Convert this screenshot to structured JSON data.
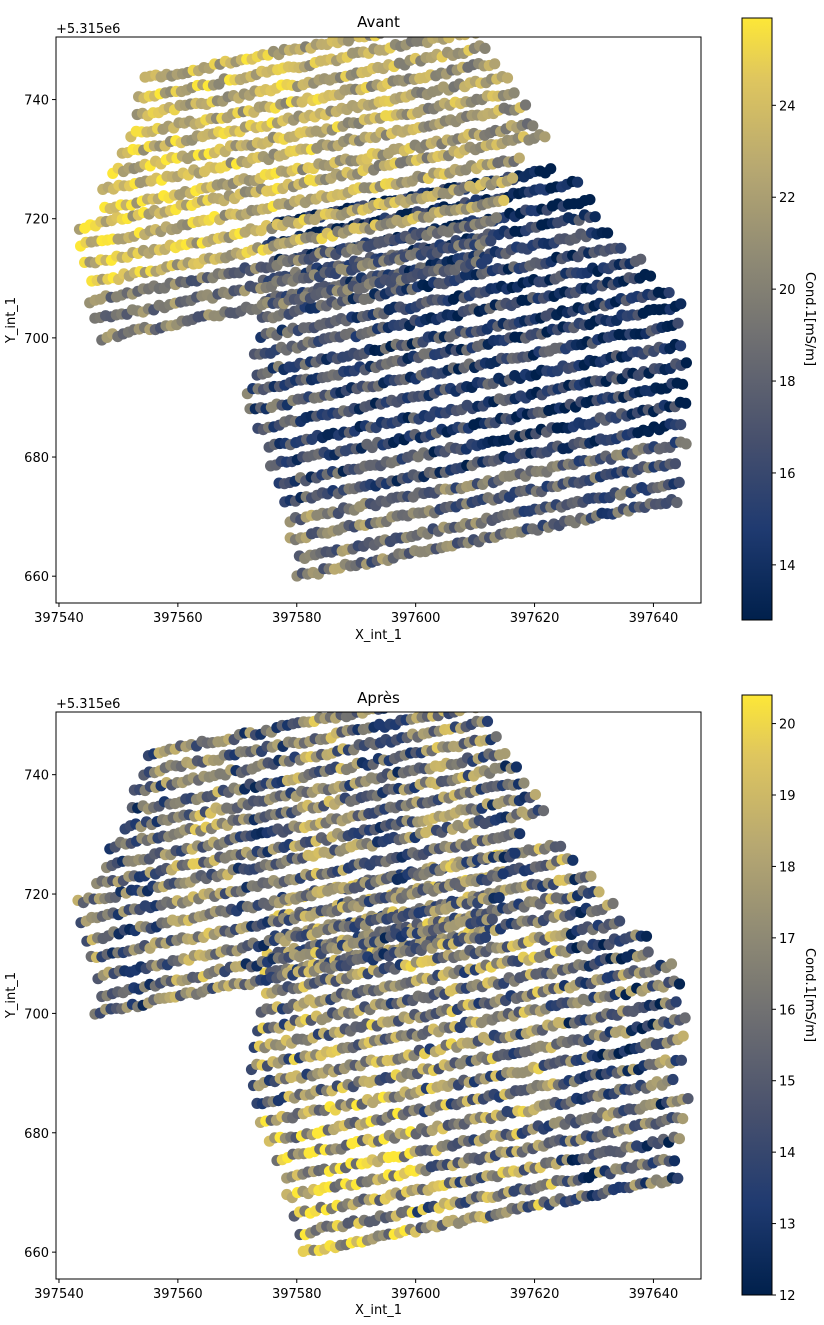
{
  "chart_data": [
    {
      "type": "scatter",
      "title": "Avant",
      "xlabel": "X_int_1",
      "ylabel": "Y_int_1",
      "y_offset_label": "+5.315e6",
      "xlim": [
        397539.5,
        397648
      ],
      "ylim": [
        655.5,
        750.5
      ],
      "xticks": [
        397540,
        397560,
        397580,
        397600,
        397620,
        397640
      ],
      "yticks": [
        660,
        680,
        700,
        720,
        740
      ],
      "colorbar": {
        "label": "Cond.1[mS/m]",
        "range": [
          12.8,
          25.9
        ],
        "ticks": [
          14,
          16,
          18,
          20,
          22,
          24
        ],
        "colormap": "cividis"
      },
      "survey_region": {
        "upper_block": {
          "x_range": [
            397544,
            397625
          ],
          "y_range": [
            700,
            746
          ],
          "dominant_value": 24,
          "boundary_corners": [
            [
              397551,
              728
            ],
            [
              397608,
              746
            ],
            [
              397625,
              723
            ],
            [
              397584,
              708
            ],
            [
              397560,
              700
            ],
            [
              397544,
              719
            ]
          ]
        },
        "lower_block": {
          "x_range": [
            397570,
            397644
          ],
          "y_range": [
            660,
            722
          ],
          "dominant_value": 16,
          "boundary_corners": [
            [
              397570,
              702
            ],
            [
              397617,
              720
            ],
            [
              397642,
              705
            ],
            [
              397644,
              681
            ],
            [
              397582,
              660
            ],
            [
              397578,
              678
            ]
          ]
        }
      },
      "n_lines": 27,
      "line_spacing_y": 3.1,
      "grid": false
    },
    {
      "type": "scatter",
      "title": "Après",
      "xlabel": "X_int_1",
      "ylabel": "Y_int_1",
      "y_offset_label": "+5.315e6",
      "xlim": [
        397539.5,
        397648
      ],
      "ylim": [
        655.5,
        750.5
      ],
      "xticks": [
        397540,
        397560,
        397580,
        397600,
        397620,
        397640
      ],
      "yticks": [
        660,
        680,
        700,
        720,
        740
      ],
      "colorbar": {
        "label": "Cond.1[mS/m]",
        "range": [
          12.0,
          20.4
        ],
        "ticks": [
          12,
          13,
          14,
          15,
          16,
          17,
          18,
          19,
          20
        ],
        "colormap": "cividis"
      },
      "survey_region": {
        "upper_block": {
          "x_range": [
            397544,
            397625
          ],
          "y_range": [
            700,
            746
          ],
          "dominant_value": 16,
          "boundary_corners": [
            [
              397551,
              728
            ],
            [
              397608,
              746
            ],
            [
              397625,
              723
            ],
            [
              397584,
              708
            ],
            [
              397560,
              700
            ],
            [
              397544,
              719
            ]
          ]
        },
        "lower_block": {
          "x_range": [
            397570,
            397644
          ],
          "y_range": [
            660,
            722
          ],
          "dominant_value": 17,
          "boundary_corners": [
            [
              397570,
              702
            ],
            [
              397617,
              720
            ],
            [
              397642,
              705
            ],
            [
              397644,
              681
            ],
            [
              397582,
              660
            ],
            [
              397578,
              678
            ]
          ]
        }
      },
      "n_lines": 27,
      "line_spacing_y": 3.1,
      "grid": false
    }
  ]
}
